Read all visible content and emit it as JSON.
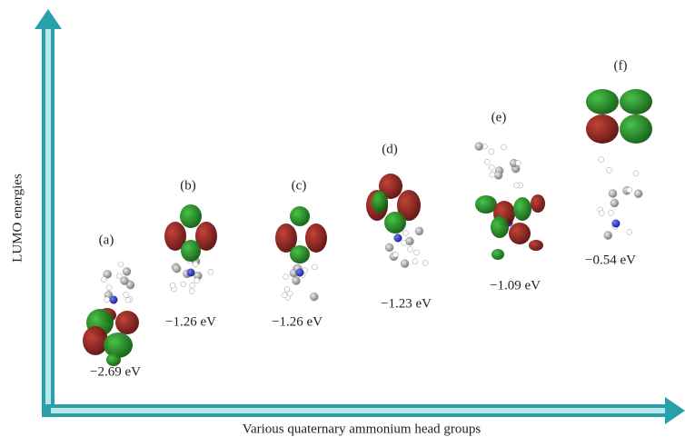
{
  "y_axis_label": "LUMO energies",
  "x_axis_label": "Various quaternary ammonium head groups",
  "panels": [
    {
      "label": "(a)",
      "energy": "−2.69 eV"
    },
    {
      "label": "(b)",
      "energy": "−1.26 eV"
    },
    {
      "label": "(c)",
      "energy": "−1.26 eV"
    },
    {
      "label": "(d)",
      "energy": "−1.23 eV"
    },
    {
      "label": "(e)",
      "energy": "−1.09 eV"
    },
    {
      "label": "(f)",
      "energy": "−0.54 eV"
    }
  ]
}
